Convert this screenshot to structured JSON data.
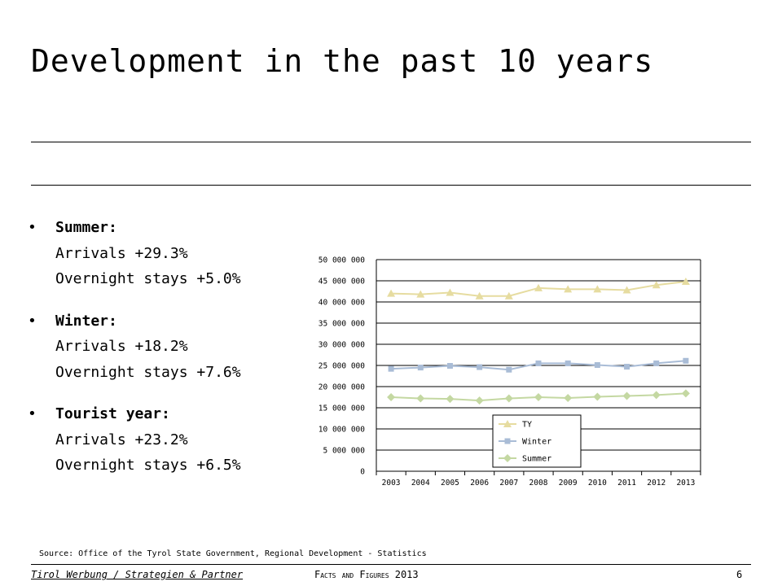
{
  "slide": {
    "title": "Development in the past 10 years",
    "bullets": [
      {
        "head": "Summer:",
        "lines": [
          "Arrivals +29.3%",
          "Overnight stays +5.0%"
        ]
      },
      {
        "head": "Winter:",
        "lines": [
          "Arrivals +18.2%",
          "Overnight stays +7.6%"
        ]
      },
      {
        "head": "Tourist year:",
        "lines": [
          "Arrivals +23.2%",
          "Overnight stays +6.5%"
        ]
      }
    ],
    "source": "Source: Office of the Tyrol State Government, Regional Development - Statistics",
    "footer_left": "Tirol Werbung / Strategien & Partner",
    "footer_mid": "Facts and Figures 2013",
    "page_number": "6"
  },
  "chart_data": {
    "type": "line",
    "categories": [
      "2003",
      "2004",
      "2005",
      "2006",
      "2007",
      "2008",
      "2009",
      "2010",
      "2011",
      "2012",
      "2013"
    ],
    "ylim": [
      0,
      50000000
    ],
    "ytick_labels": [
      "0",
      "5 000 000",
      "10 000 000",
      "15 000 000",
      "20 000 000",
      "25 000 000",
      "30 000 000",
      "35 000 000",
      "40 000 000",
      "45 000 000",
      "50 000 000"
    ],
    "grid": true,
    "legend_position": "bottom-center",
    "series": [
      {
        "name": "TY",
        "color": "#e6dca0",
        "marker": "triangle",
        "values": [
          42000000,
          41800000,
          42200000,
          41400000,
          41400000,
          43300000,
          43000000,
          43000000,
          42800000,
          44000000,
          44800000
        ]
      },
      {
        "name": "Winter",
        "color": "#a9bcd6",
        "marker": "square",
        "values": [
          24200000,
          24500000,
          24900000,
          24600000,
          24000000,
          25500000,
          25500000,
          25100000,
          24700000,
          25500000,
          26100000
        ]
      },
      {
        "name": "Summer",
        "color": "#c4d8a2",
        "marker": "diamond",
        "values": [
          17500000,
          17200000,
          17100000,
          16700000,
          17200000,
          17500000,
          17300000,
          17600000,
          17800000,
          18000000,
          18400000
        ]
      }
    ]
  }
}
